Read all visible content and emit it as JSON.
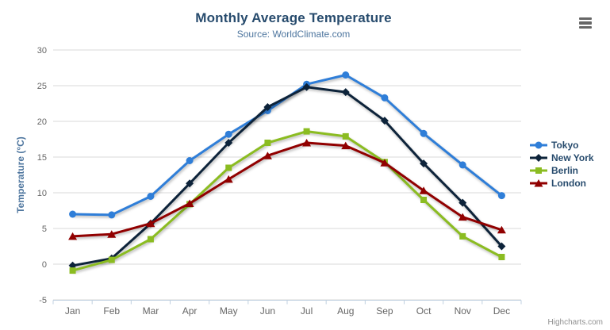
{
  "chart_data": {
    "type": "line",
    "title": "Monthly Average Temperature",
    "subtitle": "Source: WorldClimate.com",
    "categories": [
      "Jan",
      "Feb",
      "Mar",
      "Apr",
      "May",
      "Jun",
      "Jul",
      "Aug",
      "Sep",
      "Oct",
      "Nov",
      "Dec"
    ],
    "series": [
      {
        "name": "Tokyo",
        "color": "#2f7ed8",
        "marker": "circle",
        "values": [
          7.0,
          6.9,
          9.5,
          14.5,
          18.2,
          21.5,
          25.2,
          26.5,
          23.3,
          18.3,
          13.9,
          9.6
        ]
      },
      {
        "name": "New York",
        "color": "#0d233a",
        "marker": "diamond",
        "values": [
          -0.2,
          0.8,
          5.7,
          11.3,
          17.0,
          22.0,
          24.8,
          24.1,
          20.1,
          14.1,
          8.6,
          2.5
        ]
      },
      {
        "name": "Berlin",
        "color": "#8bbc21",
        "marker": "square",
        "values": [
          -0.9,
          0.6,
          3.5,
          8.4,
          13.5,
          17.0,
          18.6,
          17.9,
          14.3,
          9.0,
          3.9,
          1.0
        ]
      },
      {
        "name": "London",
        "color": "#910000",
        "marker": "triangle",
        "values": [
          3.9,
          4.2,
          5.7,
          8.5,
          11.9,
          15.2,
          17.0,
          16.6,
          14.2,
          10.3,
          6.6,
          4.8
        ]
      }
    ],
    "xlabel": "",
    "ylabel": "Temperature (°C)",
    "ylim": [
      -5,
      30
    ],
    "ytick_step": 5,
    "grid": true,
    "legend_position": "right"
  },
  "colors": {
    "title": "#274b6d",
    "subtitle": "#4d759e",
    "axis_title": "#4d759e",
    "tick_label": "#666666",
    "grid_line": "#d8d8d8",
    "axis_line": "#c0d0e0",
    "legend_text": "#274b6d",
    "credits": "#909090",
    "export_icon": "#666666",
    "background": "#ffffff"
  },
  "export_menu": {
    "icon": "hamburger-icon"
  },
  "credits": {
    "label": "Highcharts.com"
  }
}
